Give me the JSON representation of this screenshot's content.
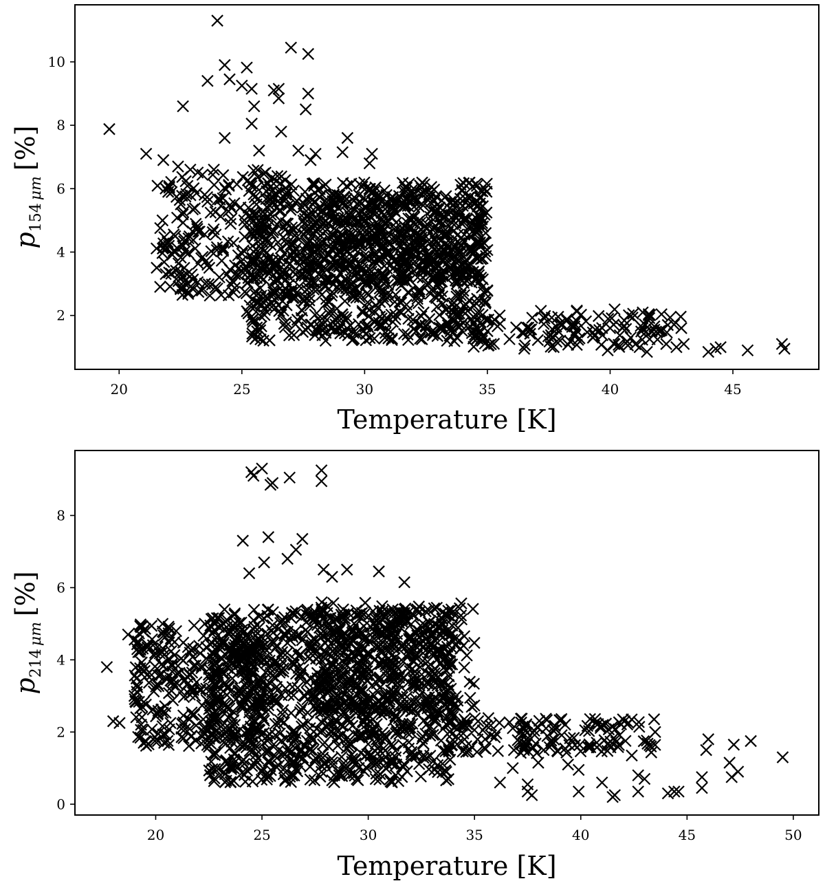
{
  "chart_data": [
    {
      "type": "scatter",
      "title": "",
      "xlabel": "Temperature [K]",
      "ylabel": {
        "main": "p",
        "sub_number": "154",
        "sub_unit": "μm",
        "unit": "[%]"
      },
      "xlim": [
        18.2,
        48.5
      ],
      "ylim": [
        0.3,
        11.8
      ],
      "x_ticks": [
        20,
        25,
        30,
        35,
        40,
        45
      ],
      "y_ticks": [
        2,
        4,
        6,
        8,
        10
      ],
      "marker": "x",
      "marker_color": "#000000",
      "grid": false,
      "legend": "none",
      "cluster_approximation": [
        {
          "x_range": [
            25.2,
            35.0
          ],
          "y_range": [
            1.2,
            6.2
          ],
          "n": 900,
          "seed": 11
        },
        {
          "x_range": [
            27.5,
            34.8
          ],
          "y_range": [
            3.0,
            5.8
          ],
          "n": 350,
          "seed": 12
        },
        {
          "x_range": [
            21.5,
            27.0
          ],
          "y_range": [
            2.6,
            6.6
          ],
          "n": 260,
          "seed": 13
        },
        {
          "x_range": [
            33.0,
            43.0
          ],
          "y_range": [
            1.0,
            2.2
          ],
          "n": 140,
          "seed": 14
        }
      ],
      "points": [
        [
          24.0,
          11.3
        ],
        [
          27.0,
          10.45
        ],
        [
          27.7,
          10.25
        ],
        [
          24.3,
          9.9
        ],
        [
          25.2,
          9.82
        ],
        [
          24.5,
          9.45
        ],
        [
          23.6,
          9.4
        ],
        [
          25.0,
          9.25
        ],
        [
          25.4,
          9.15
        ],
        [
          26.3,
          9.1
        ],
        [
          26.5,
          9.15
        ],
        [
          27.7,
          9.0
        ],
        [
          26.5,
          8.85
        ],
        [
          25.5,
          8.6
        ],
        [
          22.6,
          8.6
        ],
        [
          27.6,
          8.5
        ],
        [
          25.4,
          8.05
        ],
        [
          19.6,
          7.88
        ],
        [
          26.6,
          7.8
        ],
        [
          24.3,
          7.6
        ],
        [
          29.3,
          7.6
        ],
        [
          25.7,
          7.2
        ],
        [
          21.1,
          7.1
        ],
        [
          27.3,
          7.2
        ],
        [
          28.0,
          7.1
        ],
        [
          30.3,
          7.1
        ],
        [
          29.1,
          7.15
        ],
        [
          27.8,
          6.9
        ],
        [
          21.8,
          6.9
        ],
        [
          22.4,
          6.7
        ],
        [
          22.9,
          6.6
        ],
        [
          30.2,
          6.8
        ],
        [
          22.0,
          5.9
        ],
        [
          23.6,
          3.6
        ],
        [
          23.2,
          3.05
        ],
        [
          23.5,
          3.0
        ],
        [
          24.0,
          2.85
        ],
        [
          24.4,
          3.3
        ],
        [
          35.5,
          2.0
        ],
        [
          36.5,
          0.95
        ],
        [
          37.7,
          1.0
        ],
        [
          38.5,
          1.7
        ],
        [
          39.3,
          1.3
        ],
        [
          39.9,
          0.9
        ],
        [
          40.5,
          1.6
        ],
        [
          41.2,
          1.0
        ],
        [
          41.5,
          0.85
        ],
        [
          42.0,
          1.5
        ],
        [
          42.7,
          1.0
        ],
        [
          42.9,
          1.6
        ],
        [
          43.0,
          1.1
        ],
        [
          44.0,
          0.85
        ],
        [
          44.3,
          0.95
        ],
        [
          44.5,
          1.0
        ],
        [
          45.6,
          0.9
        ],
        [
          47.0,
          1.1
        ],
        [
          47.1,
          0.95
        ],
        [
          40.0,
          1.6
        ],
        [
          41.8,
          1.55
        ],
        [
          38.0,
          1.7
        ]
      ]
    },
    {
      "type": "scatter",
      "title": "",
      "xlabel": "Temperature [K]",
      "ylabel": {
        "main": "p",
        "sub_number": "214",
        "sub_unit": "μm",
        "unit": "[%]"
      },
      "xlim": [
        16.2,
        51.2
      ],
      "ylim": [
        -0.3,
        9.8
      ],
      "x_ticks": [
        20,
        25,
        30,
        35,
        40,
        45,
        50
      ],
      "y_ticks": [
        0,
        2,
        4,
        6,
        8
      ],
      "marker": "x",
      "marker_color": "#000000",
      "grid": false,
      "legend": "none",
      "cluster_approximation": [
        {
          "x_range": [
            22.5,
            34.0
          ],
          "y_range": [
            0.6,
            5.4
          ],
          "n": 1100,
          "seed": 21
        },
        {
          "x_range": [
            19.0,
            25.0
          ],
          "y_range": [
            1.6,
            5.0
          ],
          "n": 320,
          "seed": 22
        },
        {
          "x_range": [
            27.5,
            35.0
          ],
          "y_range": [
            2.5,
            5.6
          ],
          "n": 260,
          "seed": 23
        },
        {
          "x_range": [
            33.5,
            43.5
          ],
          "y_range": [
            1.4,
            2.4
          ],
          "n": 150,
          "seed": 24
        }
      ],
      "points": [
        [
          24.5,
          9.2
        ],
        [
          25.0,
          9.3
        ],
        [
          24.6,
          9.1
        ],
        [
          25.5,
          8.9
        ],
        [
          25.4,
          8.85
        ],
        [
          26.3,
          9.05
        ],
        [
          27.8,
          9.25
        ],
        [
          27.8,
          8.95
        ],
        [
          24.1,
          7.3
        ],
        [
          25.3,
          7.4
        ],
        [
          26.9,
          7.35
        ],
        [
          26.6,
          7.05
        ],
        [
          26.2,
          6.8
        ],
        [
          25.1,
          6.7
        ],
        [
          24.4,
          6.4
        ],
        [
          27.9,
          6.5
        ],
        [
          28.3,
          6.3
        ],
        [
          29.0,
          6.5
        ],
        [
          30.5,
          6.45
        ],
        [
          31.7,
          6.15
        ],
        [
          17.7,
          3.8
        ],
        [
          18.0,
          2.3
        ],
        [
          18.3,
          2.25
        ],
        [
          18.7,
          4.7
        ],
        [
          19.0,
          3.0
        ],
        [
          19.5,
          1.75
        ],
        [
          20.1,
          1.75
        ],
        [
          20.4,
          1.7
        ],
        [
          35.5,
          1.8
        ],
        [
          36.2,
          0.6
        ],
        [
          36.8,
          1.0
        ],
        [
          37.5,
          0.35
        ],
        [
          37.7,
          0.25
        ],
        [
          37.5,
          0.55
        ],
        [
          38.0,
          1.15
        ],
        [
          39.4,
          1.1
        ],
        [
          39.9,
          0.95
        ],
        [
          39.9,
          0.35
        ],
        [
          41.0,
          0.6
        ],
        [
          41.5,
          0.2
        ],
        [
          41.6,
          0.25
        ],
        [
          42.4,
          1.35
        ],
        [
          42.7,
          0.8
        ],
        [
          42.7,
          0.35
        ],
        [
          43.0,
          0.7
        ],
        [
          43.3,
          1.6
        ],
        [
          44.1,
          0.3
        ],
        [
          44.4,
          0.35
        ],
        [
          44.6,
          0.35
        ],
        [
          45.7,
          0.75
        ],
        [
          45.7,
          0.45
        ],
        [
          45.9,
          1.5
        ],
        [
          46.0,
          1.8
        ],
        [
          47.0,
          1.15
        ],
        [
          47.1,
          0.75
        ],
        [
          47.2,
          1.65
        ],
        [
          47.4,
          0.9
        ],
        [
          48.0,
          1.75
        ],
        [
          49.5,
          1.3
        ],
        [
          43.5,
          2.0
        ]
      ]
    }
  ]
}
